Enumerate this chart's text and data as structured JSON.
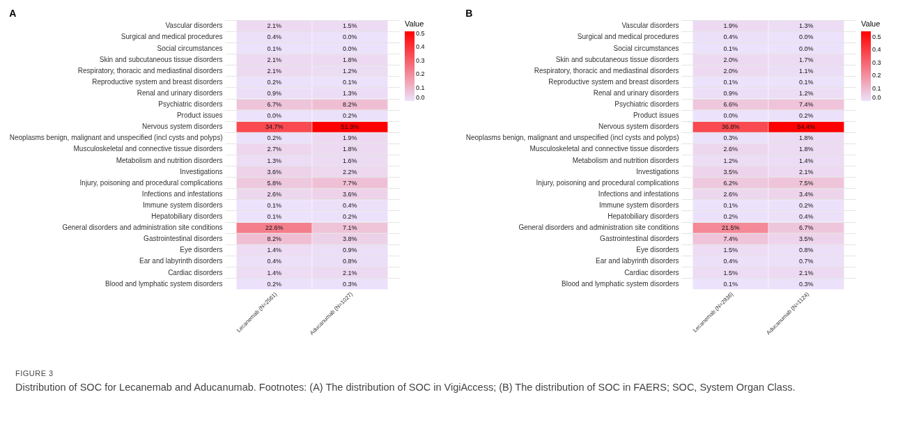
{
  "chart_data": [
    {
      "type": "heatmap",
      "title": "A",
      "legend_title": "Value",
      "grid": "y",
      "categories": [
        "Lecanemab (N=2561)",
        "Aducanumab (N=1027)"
      ],
      "y_categories": [
        "Vascular disorders",
        "Surgical and medical procedures",
        "Social circumstances",
        "Skin and subcutaneous tissue disorders",
        "Respiratory, thoracic and mediastinal disorders",
        "Reproductive system and breast disorders",
        "Renal and urinary disorders",
        "Psychiatric disorders",
        "Product issues",
        "Nervous system disorders",
        "Neoplasms benign, malignant and unspecified (incl cysts and polyps)",
        "Musculoskeletal and connective tissue disorders",
        "Metabolism and nutrition disorders",
        "Investigations",
        "Injury, poisoning and procedural complications",
        "Infections and infestations",
        "Immune system disorders",
        "Hepatobiliary disorders",
        "General disorders and administration site conditions",
        "Gastrointestinal disorders",
        "Eye disorders",
        "Ear and labyrinth disorders",
        "Cardiac disorders",
        "Blood and lymphatic system disorders"
      ],
      "cells": [
        [
          0.021,
          0.015
        ],
        [
          0.004,
          0.0
        ],
        [
          0.001,
          0.0
        ],
        [
          0.021,
          0.018
        ],
        [
          0.021,
          0.012
        ],
        [
          0.002,
          0.001
        ],
        [
          0.009,
          0.013
        ],
        [
          0.067,
          0.082
        ],
        [
          0.0,
          0.002
        ],
        [
          0.347,
          0.513
        ],
        [
          0.002,
          0.019
        ],
        [
          0.027,
          0.018
        ],
        [
          0.013,
          0.016
        ],
        [
          0.036,
          0.022
        ],
        [
          0.058,
          0.077
        ],
        [
          0.026,
          0.036
        ],
        [
          0.001,
          0.004
        ],
        [
          0.001,
          0.002
        ],
        [
          0.226,
          0.071
        ],
        [
          0.082,
          0.038
        ],
        [
          0.014,
          0.009
        ],
        [
          0.004,
          0.008
        ],
        [
          0.014,
          0.021
        ],
        [
          0.002,
          0.003
        ]
      ],
      "cell_labels": [
        [
          "2.1%",
          "1.5%"
        ],
        [
          "0.4%",
          "0.0%"
        ],
        [
          "0.1%",
          "0.0%"
        ],
        [
          "2.1%",
          "1.8%"
        ],
        [
          "2.1%",
          "1.2%"
        ],
        [
          "0.2%",
          "0.1%"
        ],
        [
          "0.9%",
          "1.3%"
        ],
        [
          "6.7%",
          "8.2%"
        ],
        [
          "0.0%",
          "0.2%"
        ],
        [
          "34.7%",
          "51.3%"
        ],
        [
          "0.2%",
          "1.9%"
        ],
        [
          "2.7%",
          "1.8%"
        ],
        [
          "1.3%",
          "1.6%"
        ],
        [
          "3.6%",
          "2.2%"
        ],
        [
          "5.8%",
          "7.7%"
        ],
        [
          "2.6%",
          "3.6%"
        ],
        [
          "0.1%",
          "0.4%"
        ],
        [
          "0.1%",
          "0.2%"
        ],
        [
          "22.6%",
          "7.1%"
        ],
        [
          "8.2%",
          "3.8%"
        ],
        [
          "1.4%",
          "0.9%"
        ],
        [
          "0.4%",
          "0.8%"
        ],
        [
          "1.4%",
          "2.1%"
        ],
        [
          "0.2%",
          "0.3%"
        ]
      ],
      "clim": [
        0,
        0.513
      ],
      "cticks": [
        {
          "value": 0,
          "label": "0.0"
        },
        {
          "value": 0.1,
          "label": "0.1"
        },
        {
          "value": 0.2,
          "label": "0.2"
        },
        {
          "value": 0.3,
          "label": "0.3"
        },
        {
          "value": 0.4,
          "label": "0.4"
        },
        {
          "value": 0.5,
          "label": "0.5"
        }
      ],
      "annotations": [
        "FIGURE 3",
        "Distribution of SOC for Lecanemab and Aducanumab. Footnotes: (A) The distribution of SOC in VigiAccess; (B) The distribution of SOC in FAERS; SOC, System Organ Class."
      ]
    },
    {
      "type": "heatmap",
      "title": "B",
      "legend_title": "Value",
      "grid": "y",
      "categories": [
        "Lecanemab (N=2936)",
        "Aducanumab (N=1124)"
      ],
      "y_categories": [
        "Vascular disorders",
        "Surgical and medical procedures",
        "Social circumstances",
        "Skin and subcutaneous tissue disorders",
        "Respiratory, thoracic and mediastinal disorders",
        "Reproductive system and breast disorders",
        "Renal and urinary disorders",
        "Psychiatric disorders",
        "Product issues",
        "Nervous system disorders",
        "Neoplasms benign, malignant and unspecified (incl cysts and polyps)",
        "Musculoskeletal and connective tissue disorders",
        "Metabolism and nutrition disorders",
        "Investigations",
        "Injury, poisoning and procedural complications",
        "Infections and infestations",
        "Immune system disorders",
        "Hepatobiliary disorders",
        "General disorders and administration site conditions",
        "Gastrointestinal disorders",
        "Eye disorders",
        "Ear and labyrinth disorders",
        "Cardiac disorders",
        "Blood and lymphatic system disorders"
      ],
      "cells": [
        [
          0.019,
          0.013
        ],
        [
          0.004,
          0.0
        ],
        [
          0.001,
          0.0
        ],
        [
          0.02,
          0.017
        ],
        [
          0.02,
          0.011
        ],
        [
          0.001,
          0.001
        ],
        [
          0.009,
          0.012
        ],
        [
          0.066,
          0.074
        ],
        [
          0.0,
          0.002
        ],
        [
          0.368,
          0.544
        ],
        [
          0.003,
          0.018
        ],
        [
          0.026,
          0.018
        ],
        [
          0.012,
          0.014
        ],
        [
          0.035,
          0.021
        ],
        [
          0.062,
          0.075
        ],
        [
          0.026,
          0.034
        ],
        [
          0.001,
          0.002
        ],
        [
          0.002,
          0.004
        ],
        [
          0.215,
          0.067
        ],
        [
          0.074,
          0.035
        ],
        [
          0.015,
          0.008
        ],
        [
          0.004,
          0.007
        ],
        [
          0.015,
          0.021
        ],
        [
          0.001,
          0.003
        ]
      ],
      "cell_labels": [
        [
          "1.9%",
          "1.3%"
        ],
        [
          "0.4%",
          "0.0%"
        ],
        [
          "0.1%",
          "0.0%"
        ],
        [
          "2.0%",
          "1.7%"
        ],
        [
          "2.0%",
          "1.1%"
        ],
        [
          "0.1%",
          "0.1%"
        ],
        [
          "0.9%",
          "1.2%"
        ],
        [
          "6.6%",
          "7.4%"
        ],
        [
          "0.0%",
          "0.2%"
        ],
        [
          "36.8%",
          "54.4%"
        ],
        [
          "0.3%",
          "1.8%"
        ],
        [
          "2.6%",
          "1.8%"
        ],
        [
          "1.2%",
          "1.4%"
        ],
        [
          "3.5%",
          "2.1%"
        ],
        [
          "6.2%",
          "7.5%"
        ],
        [
          "2.6%",
          "3.4%"
        ],
        [
          "0.1%",
          "0.2%"
        ],
        [
          "0.2%",
          "0.4%"
        ],
        [
          "21.5%",
          "6.7%"
        ],
        [
          "7.4%",
          "3.5%"
        ],
        [
          "1.5%",
          "0.8%"
        ],
        [
          "0.4%",
          "0.7%"
        ],
        [
          "1.5%",
          "2.1%"
        ],
        [
          "0.1%",
          "0.3%"
        ]
      ],
      "clim": [
        0,
        0.544
      ],
      "cticks": [
        {
          "value": 0,
          "label": "0.0"
        },
        {
          "value": 0.1,
          "label": "0.1"
        },
        {
          "value": 0.2,
          "label": "0.2"
        },
        {
          "value": 0.3,
          "label": "0.3"
        },
        {
          "value": 0.4,
          "label": "0.4"
        },
        {
          "value": 0.5,
          "label": "0.5"
        }
      ]
    }
  ]
}
